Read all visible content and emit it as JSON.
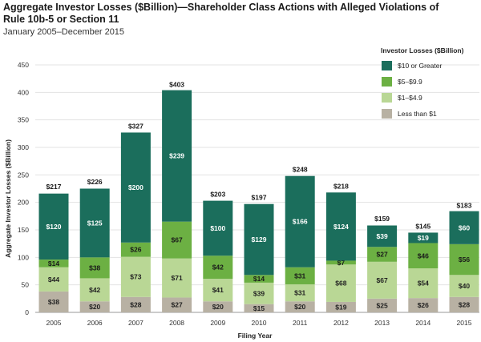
{
  "chart_data": {
    "type": "bar",
    "stacked": true,
    "title": "Aggregate Investor Losses ($Billion)—Shareholder Class Actions with Alleged Violations of Rule 10b-5 or Section 11",
    "subtitle": "January 2005–December 2015",
    "xlabel": "Filing Year",
    "ylabel": "Aggregate Investor Losses ($Billion)",
    "ylim": [
      0,
      450
    ],
    "yticks": [
      0,
      50,
      100,
      150,
      200,
      250,
      300,
      350,
      400,
      450
    ],
    "categories": [
      "2005",
      "2006",
      "2007",
      "2008",
      "2009",
      "2010",
      "2011",
      "2012",
      "2013",
      "2014",
      "2015"
    ],
    "totals": [
      217,
      226,
      327,
      403,
      203,
      197,
      248,
      218,
      159,
      145,
      183
    ],
    "legend_title": "Investor Losses ($Billion)",
    "series": [
      {
        "name": "Less than $1",
        "color": "#b8b1a3",
        "label_color": "#222222",
        "values": [
          38,
          20,
          28,
          27,
          20,
          15,
          20,
          19,
          25,
          26,
          28
        ]
      },
      {
        "name": "$1–$4.9",
        "color": "#b9d795",
        "label_color": "#222222",
        "values": [
          44,
          42,
          73,
          71,
          41,
          39,
          31,
          68,
          67,
          54,
          40
        ]
      },
      {
        "name": "$5–$9.9",
        "color": "#6cb043",
        "label_color": "#1a1a1a",
        "values": [
          14,
          38,
          26,
          67,
          42,
          14,
          31,
          7,
          27,
          46,
          56
        ]
      },
      {
        "name": "$10 or Greater",
        "color": "#1b6e5c",
        "label_color": "#ffffff",
        "values": [
          120,
          125,
          200,
          239,
          100,
          129,
          166,
          124,
          39,
          19,
          60
        ]
      }
    ],
    "legend_order": [
      3,
      2,
      1,
      0
    ]
  }
}
